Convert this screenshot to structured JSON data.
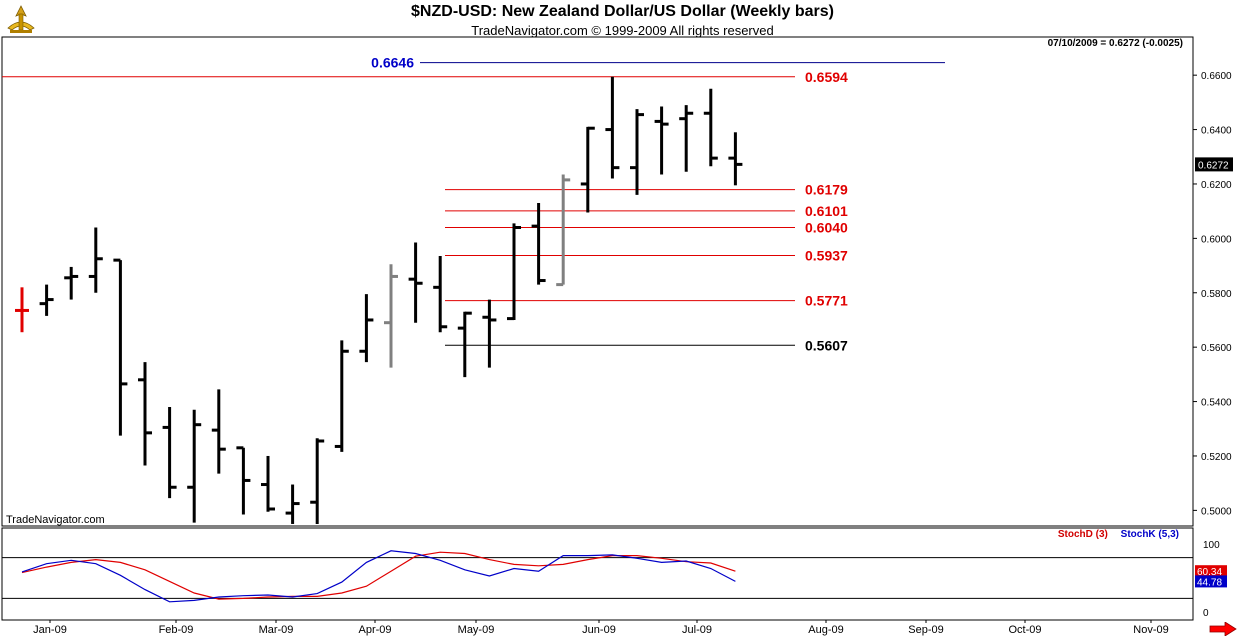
{
  "chart_data": {
    "type": "bar",
    "bar_style": "OHLC",
    "title": "$NZD-USD:  New Zealand Dollar/US Dollar  (Weekly bars)",
    "subtitle": "TradeNavigator.com © 1999-2009 All rights reserved",
    "quote": "07/10/2009 = 0.6272 (-0.0025)",
    "watermark": "TradeNavigator.com",
    "last_price_label": "0.6272",
    "x_tick_labels": [
      "Jan-09",
      "Feb-09",
      "Mar-09",
      "Apr-09",
      "May-09",
      "Jun-09",
      "Jul-09",
      "Aug-09",
      "Sep-09",
      "Oct-09",
      "Nov-09"
    ],
    "y_tick_labels": [
      "0.6600",
      "0.6400",
      "0.6200",
      "0.6000",
      "0.5800",
      "0.5600",
      "0.5400",
      "0.5200",
      "0.5000"
    ],
    "ylim": [
      0.495,
      0.668
    ],
    "bars": [
      {
        "week": "2008-12-26",
        "open": 0.5735,
        "high": 0.582,
        "low": 0.5655,
        "close": 0.5735,
        "color": "#e00000"
      },
      {
        "week": "2009-01-02",
        "open": 0.576,
        "high": 0.583,
        "low": 0.5715,
        "close": 0.5775,
        "color": "#000000"
      },
      {
        "week": "2009-01-09",
        "open": 0.5855,
        "high": 0.5895,
        "low": 0.5775,
        "close": 0.586,
        "color": "#000000"
      },
      {
        "week": "2009-01-16",
        "open": 0.586,
        "high": 0.604,
        "low": 0.58,
        "close": 0.5925,
        "color": "#000000"
      },
      {
        "week": "2009-01-23",
        "open": 0.592,
        "high": 0.592,
        "low": 0.5275,
        "close": 0.5465,
        "color": "#000000"
      },
      {
        "week": "2009-01-30",
        "open": 0.548,
        "high": 0.5545,
        "low": 0.5165,
        "close": 0.5285,
        "color": "#000000"
      },
      {
        "week": "2009-02-06",
        "open": 0.5305,
        "high": 0.538,
        "low": 0.5045,
        "close": 0.5085,
        "color": "#000000"
      },
      {
        "week": "2009-02-13",
        "open": 0.5085,
        "high": 0.537,
        "low": 0.4955,
        "close": 0.5315,
        "color": "#000000"
      },
      {
        "week": "2009-02-20",
        "open": 0.5295,
        "high": 0.5445,
        "low": 0.5135,
        "close": 0.5225,
        "color": "#000000"
      },
      {
        "week": "2009-02-27",
        "open": 0.523,
        "high": 0.523,
        "low": 0.4985,
        "close": 0.511,
        "color": "#000000"
      },
      {
        "week": "2009-03-06",
        "open": 0.5095,
        "high": 0.52,
        "low": 0.4995,
        "close": 0.5005,
        "color": "#000000"
      },
      {
        "week": "2009-03-13",
        "open": 0.499,
        "high": 0.5095,
        "low": 0.495,
        "close": 0.5025,
        "color": "#000000"
      },
      {
        "week": "2009-03-20",
        "open": 0.503,
        "high": 0.5265,
        "low": 0.495,
        "close": 0.5255,
        "color": "#000000"
      },
      {
        "week": "2009-03-27",
        "open": 0.5235,
        "high": 0.5625,
        "low": 0.5215,
        "close": 0.5585,
        "color": "#000000"
      },
      {
        "week": "2009-04-03",
        "open": 0.5585,
        "high": 0.5795,
        "low": 0.5545,
        "close": 0.57,
        "color": "#000000"
      },
      {
        "week": "2009-04-10",
        "open": 0.569,
        "high": 0.5905,
        "low": 0.5525,
        "close": 0.586,
        "color": "#808080"
      },
      {
        "week": "2009-04-17",
        "open": 0.585,
        "high": 0.5985,
        "low": 0.569,
        "close": 0.5835,
        "color": "#000000"
      },
      {
        "week": "2009-04-24",
        "open": 0.582,
        "high": 0.5935,
        "low": 0.5655,
        "close": 0.5675,
        "color": "#000000"
      },
      {
        "week": "2009-05-01",
        "open": 0.567,
        "high": 0.573,
        "low": 0.549,
        "close": 0.5725,
        "color": "#000000"
      },
      {
        "week": "2009-05-08",
        "open": 0.571,
        "high": 0.5775,
        "low": 0.5525,
        "close": 0.57,
        "color": "#000000"
      },
      {
        "week": "2009-05-15",
        "open": 0.5705,
        "high": 0.6055,
        "low": 0.57,
        "close": 0.604,
        "color": "#000000"
      },
      {
        "week": "2009-05-22",
        "open": 0.6045,
        "high": 0.613,
        "low": 0.583,
        "close": 0.5845,
        "color": "#000000"
      },
      {
        "week": "2009-05-29",
        "open": 0.583,
        "high": 0.6235,
        "low": 0.583,
        "close": 0.6215,
        "color": "#808080"
      },
      {
        "week": "2009-06-05",
        "open": 0.62,
        "high": 0.641,
        "low": 0.6095,
        "close": 0.6405,
        "color": "#000000"
      },
      {
        "week": "2009-06-12",
        "open": 0.64,
        "high": 0.6594,
        "low": 0.622,
        "close": 0.626,
        "color": "#000000"
      },
      {
        "week": "2009-06-19",
        "open": 0.626,
        "high": 0.6475,
        "low": 0.616,
        "close": 0.6455,
        "color": "#000000"
      },
      {
        "week": "2009-06-26",
        "open": 0.643,
        "high": 0.6485,
        "low": 0.6235,
        "close": 0.642,
        "color": "#000000"
      },
      {
        "week": "2009-07-03",
        "open": 0.644,
        "high": 0.649,
        "low": 0.6245,
        "close": 0.646,
        "color": "#000000"
      },
      {
        "week": "2009-07-10",
        "open": 0.646,
        "high": 0.655,
        "low": 0.6265,
        "close": 0.6295,
        "color": "#000000"
      },
      {
        "week": "2009-07-17",
        "open": 0.6295,
        "high": 0.639,
        "low": 0.6195,
        "close": 0.6272,
        "color": "#000000"
      }
    ],
    "levels": [
      {
        "label": "0.6646",
        "value": 0.6646,
        "color": "#0000c8",
        "line_color": "#00008b"
      },
      {
        "label": "0.6594",
        "value": 0.6594,
        "color": "#e00000",
        "line_color": "#e00000"
      },
      {
        "label": "0.6179",
        "value": 0.6179,
        "color": "#e00000",
        "line_color": "#e00000"
      },
      {
        "label": "0.6101",
        "value": 0.6101,
        "color": "#e00000",
        "line_color": "#e00000"
      },
      {
        "label": "0.6040",
        "value": 0.604,
        "color": "#e00000",
        "line_color": "#e00000"
      },
      {
        "label": "0.5937",
        "value": 0.5937,
        "color": "#e00000",
        "line_color": "#e00000"
      },
      {
        "label": "0.5771",
        "value": 0.5771,
        "color": "#e00000",
        "line_color": "#e00000"
      },
      {
        "label": "0.5607",
        "value": 0.5607,
        "color": "#000000",
        "line_color": "#000000"
      }
    ],
    "indicator": {
      "legend_d": "StochD (3)",
      "legend_k": "StochK (5,3)",
      "y_tick_labels": [
        "100",
        "0"
      ],
      "ylim": [
        0,
        100
      ],
      "reference_lines": [
        80,
        20
      ],
      "stoch_d_last_label": "60.34",
      "stoch_k_last_label": "44.78",
      "stoch_d_color": "#e00000",
      "stoch_k_color": "#0000c8",
      "stoch_d": [
        58,
        66,
        73,
        77,
        73,
        62,
        45,
        28,
        19,
        20,
        22,
        23,
        23,
        28,
        38,
        60,
        82,
        88,
        86,
        77,
        70,
        68,
        70,
        77,
        83,
        83,
        79,
        74,
        72,
        60
      ],
      "stoch_k": [
        59,
        71,
        76,
        71,
        54,
        33,
        15,
        17,
        22,
        24,
        25,
        22,
        27,
        44,
        73,
        90,
        86,
        76,
        62,
        53,
        64,
        60,
        83,
        83,
        84,
        79,
        73,
        75,
        64,
        45
      ]
    }
  }
}
